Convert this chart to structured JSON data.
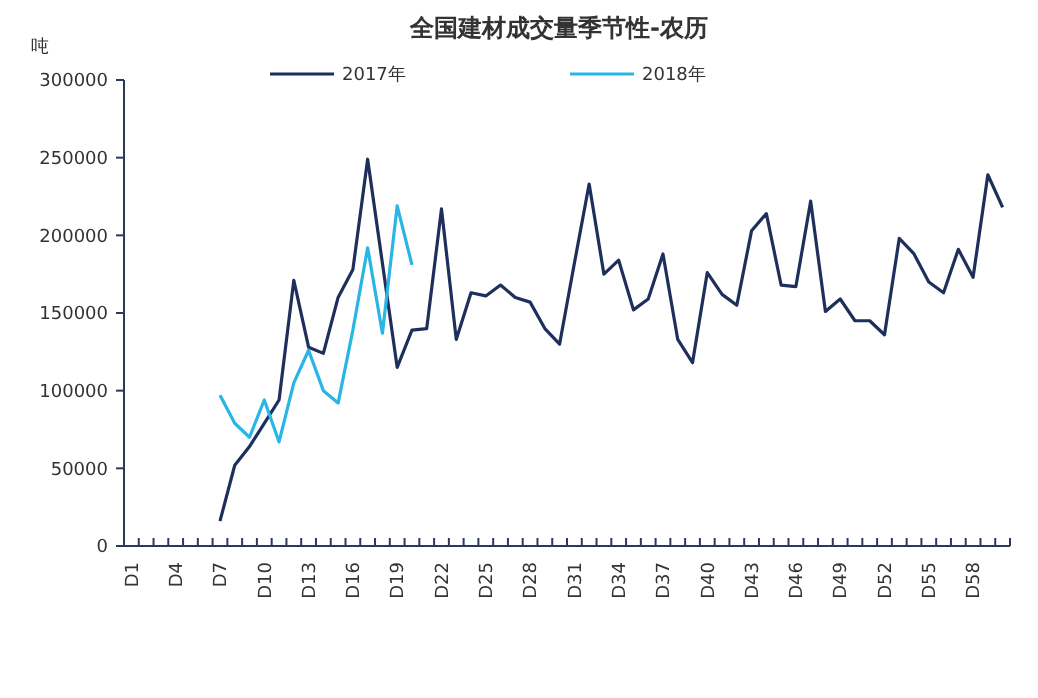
{
  "chart_data": {
    "type": "line",
    "title": "全国建材成交量季节性-农历",
    "ylabel": "吨",
    "categories": [
      "D1",
      null,
      null,
      "D4",
      null,
      null,
      "D7",
      null,
      null,
      "D10",
      null,
      null,
      "D13",
      null,
      null,
      "D16",
      null,
      null,
      "D19",
      null,
      null,
      "D22",
      null,
      null,
      "D25",
      null,
      null,
      "D28",
      null,
      null,
      "D31",
      null,
      null,
      "D34",
      null,
      null,
      "D37",
      null,
      null,
      "D40",
      null,
      null,
      "D43",
      null,
      null,
      "D46",
      null,
      null,
      "D49",
      null,
      null,
      "D52",
      null,
      null,
      "D55",
      null,
      null,
      "D58",
      null,
      null
    ],
    "series": [
      {
        "name": "2017年",
        "color": "#1f2f5c",
        "values": [
          null,
          null,
          null,
          null,
          null,
          null,
          16000,
          52000,
          64000,
          79000,
          94000,
          171000,
          128000,
          124000,
          160000,
          178000,
          249000,
          182000,
          115000,
          139000,
          140000,
          217000,
          133000,
          163000,
          161000,
          168000,
          160000,
          157000,
          140000,
          130000,
          182000,
          233000,
          175000,
          184000,
          152000,
          159000,
          188000,
          133000,
          118000,
          176000,
          162000,
          155000,
          203000,
          214000,
          168000,
          167000,
          222000,
          151000,
          159000,
          145000,
          145000,
          136000,
          198000,
          188000,
          170000,
          163000,
          191000,
          173000,
          239000,
          218000
        ]
      },
      {
        "name": "2018年",
        "color": "#29b5e6",
        "values": [
          null,
          null,
          null,
          null,
          null,
          null,
          97000,
          79000,
          70000,
          94000,
          67000,
          105000,
          126000,
          100000,
          92000,
          139000,
          192000,
          137000,
          219000,
          181000,
          null,
          null,
          null,
          null,
          null,
          null,
          null,
          null,
          null,
          null,
          null,
          null,
          null,
          null,
          null,
          null,
          null,
          null,
          null,
          null,
          null,
          null,
          null,
          null,
          null,
          null,
          null,
          null,
          null,
          null,
          null,
          null,
          null,
          null,
          null,
          null,
          null,
          null,
          null,
          null
        ]
      }
    ],
    "ylim": [
      0,
      300000
    ],
    "yticks": [
      0,
      50000,
      100000,
      150000,
      200000,
      250000,
      300000
    ],
    "grid": false,
    "legend": "top",
    "marker": "none",
    "line_style": "solid"
  }
}
